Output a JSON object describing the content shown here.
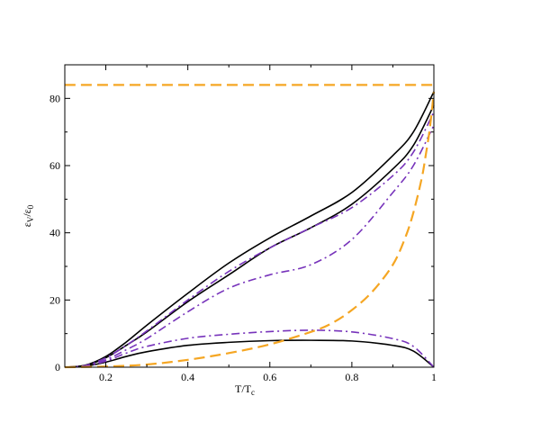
{
  "chart_data": {
    "type": "line",
    "xlabel": {
      "main": "T/T",
      "sub": "c"
    },
    "ylabel": {
      "main": "ε",
      "sub1": "V",
      "mid": "/ε",
      "sub2": "0"
    },
    "xlim": [
      0.1,
      1.0
    ],
    "ylim": [
      0,
      90
    ],
    "xticks": [
      {
        "value": 0.2,
        "label": "0.2"
      },
      {
        "value": 0.4,
        "label": "0.4"
      },
      {
        "value": 0.6,
        "label": "0.6"
      },
      {
        "value": 0.8,
        "label": "0.8"
      },
      {
        "value": 1.0,
        "label": "1"
      }
    ],
    "yticks": [
      {
        "value": 0,
        "label": "0"
      },
      {
        "value": 20,
        "label": "20"
      },
      {
        "value": 40,
        "label": "40"
      },
      {
        "value": 60,
        "label": "60"
      },
      {
        "value": 80,
        "label": "80"
      }
    ],
    "grid": false,
    "series": [
      {
        "style": "solid",
        "color": "#000000",
        "x": [
          0.1,
          0.15,
          0.2,
          0.25,
          0.3,
          0.4,
          0.5,
          0.6,
          0.7,
          0.8,
          0.9,
          0.95,
          1.0
        ],
        "y": [
          0,
          0.3,
          1.5,
          3.2,
          4.6,
          6.5,
          7.4,
          7.9,
          8.0,
          7.8,
          6.5,
          4.8,
          0
        ]
      },
      {
        "style": "solid",
        "color": "#000000",
        "x": [
          0.1,
          0.15,
          0.2,
          0.25,
          0.3,
          0.4,
          0.5,
          0.6,
          0.7,
          0.8,
          0.9,
          0.95,
          1.0
        ],
        "y": [
          0,
          0.5,
          2.8,
          6.5,
          10.5,
          19.5,
          27.5,
          35.5,
          41.5,
          48.5,
          59,
          66,
          78
        ]
      },
      {
        "style": "solid",
        "color": "#000000",
        "x": [
          0.1,
          0.15,
          0.2,
          0.25,
          0.3,
          0.4,
          0.5,
          0.6,
          0.7,
          0.8,
          0.9,
          0.95,
          1.0
        ],
        "y": [
          0,
          0.6,
          3.2,
          7.5,
          12.5,
          22,
          31,
          38.5,
          45,
          52,
          63,
          70,
          82
        ]
      },
      {
        "style": "dashdot",
        "color": "#7733bb",
        "x": [
          0.1,
          0.15,
          0.2,
          0.25,
          0.3,
          0.4,
          0.5,
          0.6,
          0.7,
          0.8,
          0.9,
          0.95,
          1.0
        ],
        "y": [
          0,
          0.3,
          1.8,
          4.2,
          6.2,
          8.6,
          9.8,
          10.6,
          11.0,
          10.5,
          8.5,
          6.2,
          0
        ]
      },
      {
        "style": "dashdot",
        "color": "#7733bb",
        "x": [
          0.1,
          0.15,
          0.2,
          0.25,
          0.3,
          0.4,
          0.5,
          0.6,
          0.7,
          0.8,
          0.9,
          0.95,
          1.0
        ],
        "y": [
          0,
          0.4,
          2.2,
          5.2,
          8.5,
          16.5,
          23.5,
          27.5,
          30.5,
          38,
          52,
          60,
          72
        ]
      },
      {
        "style": "dashdot",
        "color": "#7733bb",
        "x": [
          0.1,
          0.15,
          0.2,
          0.25,
          0.3,
          0.4,
          0.5,
          0.6,
          0.7,
          0.8,
          0.9,
          0.95,
          1.0
        ],
        "y": [
          0,
          0.5,
          2.8,
          6.5,
          10.8,
          20,
          28.5,
          35.5,
          41.5,
          47.5,
          57,
          64,
          76
        ]
      },
      {
        "style": "dashed",
        "color": "#f5a623",
        "x": [
          0.1,
          1.0
        ],
        "y": [
          84,
          84
        ]
      },
      {
        "style": "dashed",
        "color": "#f5a623",
        "x": [
          0.1,
          0.2,
          0.3,
          0.4,
          0.5,
          0.6,
          0.7,
          0.75,
          0.8,
          0.85,
          0.9,
          0.93,
          0.95,
          0.97,
          0.98,
          0.99,
          1.0
        ],
        "y": [
          0,
          0.2,
          0.8,
          2.2,
          4.2,
          6.8,
          10.5,
          13.0,
          17.0,
          22.5,
          30.5,
          38.5,
          46,
          56,
          63,
          71,
          82
        ]
      }
    ]
  }
}
